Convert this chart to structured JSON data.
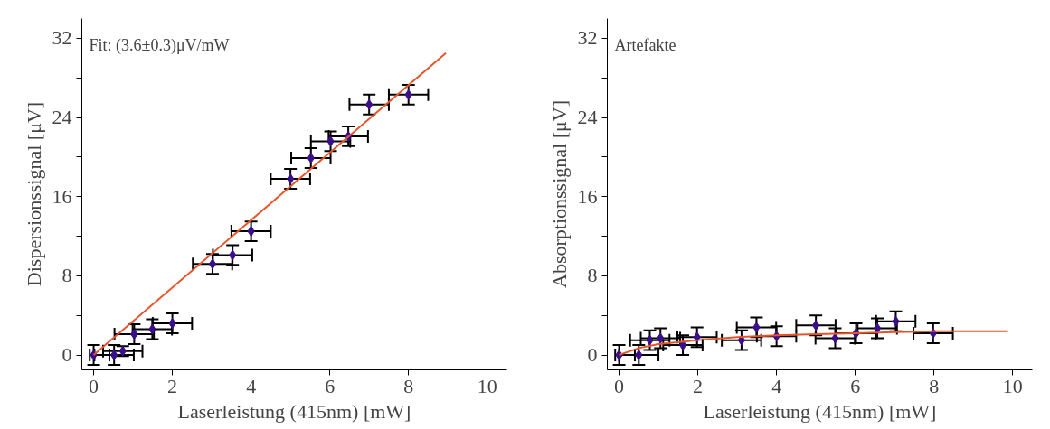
{
  "chart_data": [
    {
      "type": "scatter",
      "xlabel": "Laserleistung (415nm) [mW]",
      "ylabel": "Dispersionssignal [μV]",
      "annotations": [
        "Fit: (3.6±0.3)μV/mW"
      ],
      "xlim": [
        -0.3,
        10.5
      ],
      "ylim": [
        -1.5,
        34
      ],
      "xticks": [
        0,
        2,
        4,
        6,
        8,
        10
      ],
      "yticks": [
        0,
        {
          "value": 4,
          "label": null
        },
        8,
        {
          "value": 12,
          "label": null
        },
        16,
        {
          "value": 20,
          "label": null
        },
        24,
        {
          "value": 28,
          "label": null
        },
        32
      ],
      "grid": false,
      "series": [
        {
          "type": "scatter",
          "marker": "diamond",
          "color": "#3b0f8c",
          "x": [
            0,
            0.52,
            0.74,
            1.03,
            1.49,
            2.0,
            3.02,
            3.53,
            4.0,
            5.0,
            5.52,
            6.02,
            6.47,
            7.0,
            8.0
          ],
          "values": [
            0,
            0,
            0.4,
            2.1,
            2.6,
            3.2,
            9.2,
            10.1,
            12.5,
            17.8,
            19.9,
            21.6,
            22.1,
            25.3,
            26.3
          ],
          "errors": [
            1,
            1,
            0.5,
            1,
            1,
            1,
            1,
            1,
            1,
            1,
            1,
            1,
            1,
            1,
            1
          ],
          "xerrors": [
            [
              -0.1,
              0.4
            ],
            0.5,
            0.5,
            0.5,
            0.5,
            0.5,
            0.5,
            0.5,
            0.5,
            0.5,
            0.5,
            0.5,
            0.5,
            0.5,
            0.5
          ]
        },
        {
          "type": "line",
          "color": "#e8542a",
          "x": [
            0,
            8.95
          ],
          "values": [
            0,
            30.5
          ]
        }
      ]
    },
    {
      "type": "scatter",
      "xlabel": "Laserleistung (415nm) [mW]",
      "ylabel": "Absorptionssignal [μV]",
      "annotations": [
        "Artefakte"
      ],
      "xlim": [
        -0.3,
        10.5
      ],
      "ylim": [
        -1.5,
        34
      ],
      "xticks": [
        0,
        2,
        4,
        6,
        8,
        10
      ],
      "yticks": [
        0,
        {
          "value": 4,
          "label": null
        },
        8,
        {
          "value": 12,
          "label": null
        },
        16,
        {
          "value": 20,
          "label": null
        },
        24,
        {
          "value": 28,
          "label": null
        },
        32
      ],
      "grid": false,
      "series": [
        {
          "type": "scatter",
          "marker": "diamond",
          "color": "#3b0f8c",
          "x": [
            0,
            0.5,
            0.78,
            1.05,
            1.62,
            1.98,
            3.11,
            3.49,
            4.0,
            5.0,
            5.49,
            6.02,
            6.56,
            7.03,
            7.98
          ],
          "values": [
            0,
            0,
            1.5,
            1.7,
            1.0,
            1.8,
            1.5,
            2.8,
            1.9,
            3.0,
            1.7,
            2.2,
            2.7,
            3.4,
            2.2
          ],
          "errors": [
            1,
            1,
            1,
            1,
            1,
            1,
            1,
            1,
            1,
            1,
            1,
            1,
            1,
            1,
            1
          ],
          "xerrors": [
            [
              -0.1,
              0.4
            ],
            0.5,
            0.5,
            0.5,
            0.5,
            0.5,
            0.5,
            0.5,
            0.5,
            0.5,
            0.5,
            0.5,
            0.5,
            0.5,
            0.5
          ]
        },
        {
          "type": "line",
          "color": "#e8542a",
          "x": [
            0,
            0.5,
            1,
            2,
            3,
            4,
            5,
            6,
            7,
            8,
            9.88
          ],
          "values": [
            0,
            0.7,
            1.1,
            1.5,
            1.8,
            2.0,
            2.1,
            2.2,
            2.3,
            2.4,
            2.4
          ]
        }
      ]
    }
  ]
}
